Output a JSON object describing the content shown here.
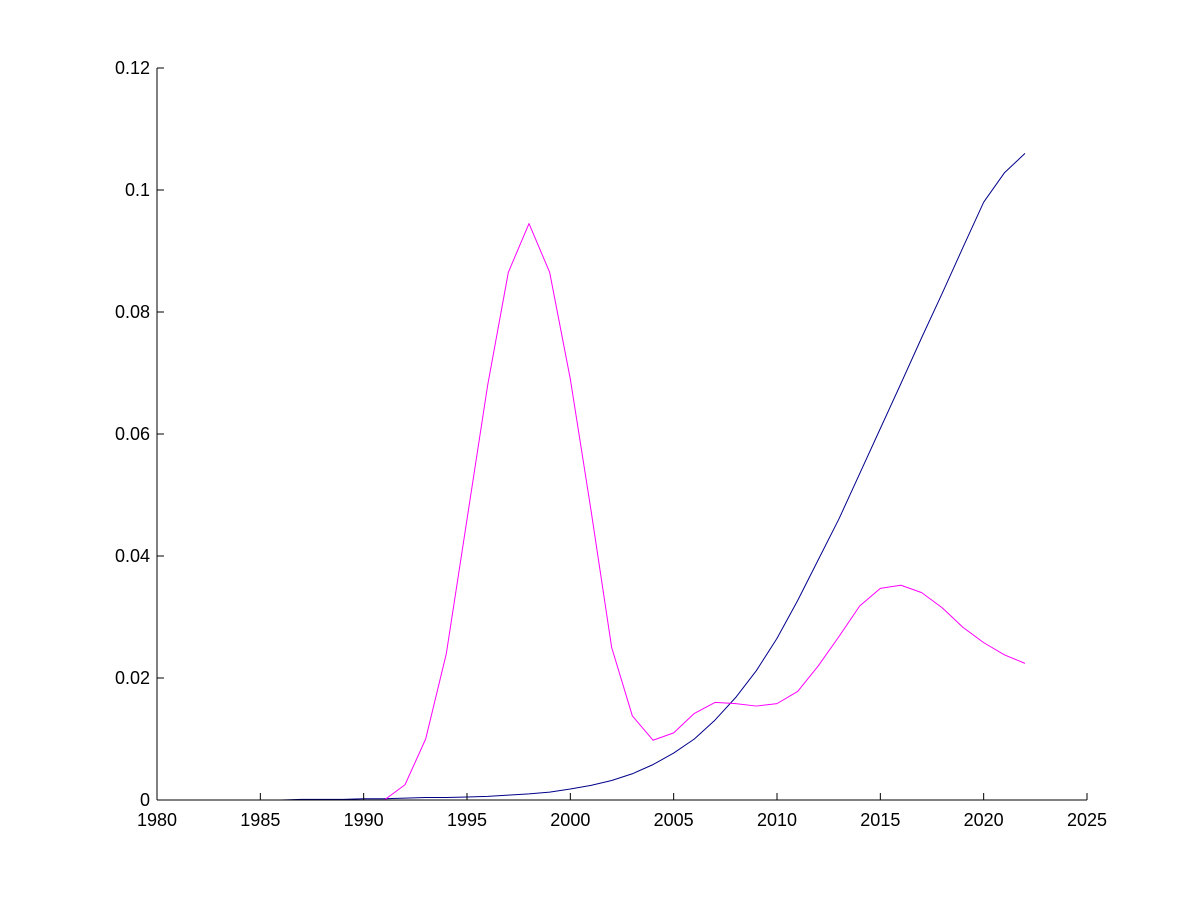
{
  "chart_data": {
    "type": "line",
    "title": "",
    "xlabel": "",
    "ylabel": "",
    "xlim": [
      1980,
      2025
    ],
    "ylim": [
      0,
      0.12
    ],
    "x_ticks": [
      1980,
      1985,
      1990,
      1995,
      2000,
      2005,
      2010,
      2015,
      2020,
      2025
    ],
    "x_tick_labels": [
      "1980",
      "1985",
      "1990",
      "1995",
      "2000",
      "2005",
      "2010",
      "2015",
      "2020",
      "2025"
    ],
    "y_ticks": [
      0,
      0.02,
      0.04,
      0.06,
      0.08,
      0.1,
      0.12
    ],
    "y_tick_labels": [
      "0",
      "0.02",
      "0.04",
      "0.06",
      "0.08",
      "0.1",
      "0.12"
    ],
    "grid": false,
    "legend": "none",
    "series": [
      {
        "color": "#00008b",
        "x": [
          1980,
          1981,
          1982,
          1983,
          1984,
          1985,
          1986,
          1987,
          1988,
          1989,
          1990,
          1991,
          1992,
          1993,
          1994,
          1995,
          1996,
          1997,
          1998,
          1999,
          2000,
          2001,
          2002,
          2003,
          2004,
          2005,
          2006,
          2007,
          2008,
          2009,
          2010,
          2011,
          2012,
          2013,
          2014,
          2015,
          2016,
          2017,
          2018,
          2019,
          2020,
          2021,
          2022
        ],
        "y": [
          0,
          0,
          0,
          0,
          0,
          0,
          0,
          0.0001,
          0.0001,
          0.0001,
          0.0002,
          0.0002,
          0.0003,
          0.0004,
          0.0004,
          0.0005,
          0.0006,
          0.0008,
          0.001,
          0.0013,
          0.0018,
          0.0024,
          0.0032,
          0.0043,
          0.0058,
          0.0077,
          0.01,
          0.0131,
          0.0168,
          0.0212,
          0.0265,
          0.0327,
          0.0394,
          0.0461,
          0.0535,
          0.0609,
          0.0683,
          0.0758,
          0.0831,
          0.0906,
          0.098,
          0.1028,
          0.106
        ]
      },
      {
        "color": "#ff00ff",
        "x": [
          1980,
          1981,
          1982,
          1983,
          1984,
          1985,
          1986,
          1987,
          1988,
          1989,
          1990,
          1991,
          1992,
          1993,
          1994,
          1995,
          1996,
          1997,
          1998,
          1999,
          2000,
          2001,
          2002,
          2003,
          2004,
          2005,
          2006,
          2007,
          2008,
          2009,
          2010,
          2011,
          2012,
          2013,
          2014,
          2015,
          2016,
          2017,
          2018,
          2019,
          2020,
          2021,
          2022
        ],
        "y": [
          0,
          0,
          0,
          0,
          0,
          0,
          0,
          0,
          0,
          0,
          0,
          0,
          0.0025,
          0.01,
          0.024,
          0.046,
          0.068,
          0.0865,
          0.0945,
          0.0865,
          0.069,
          0.0475,
          0.025,
          0.0138,
          0.0098,
          0.011,
          0.0142,
          0.016,
          0.0158,
          0.0154,
          0.0158,
          0.0178,
          0.022,
          0.0268,
          0.0318,
          0.0347,
          0.0352,
          0.034,
          0.0315,
          0.0283,
          0.0258,
          0.0238,
          0.0224
        ]
      }
    ]
  }
}
